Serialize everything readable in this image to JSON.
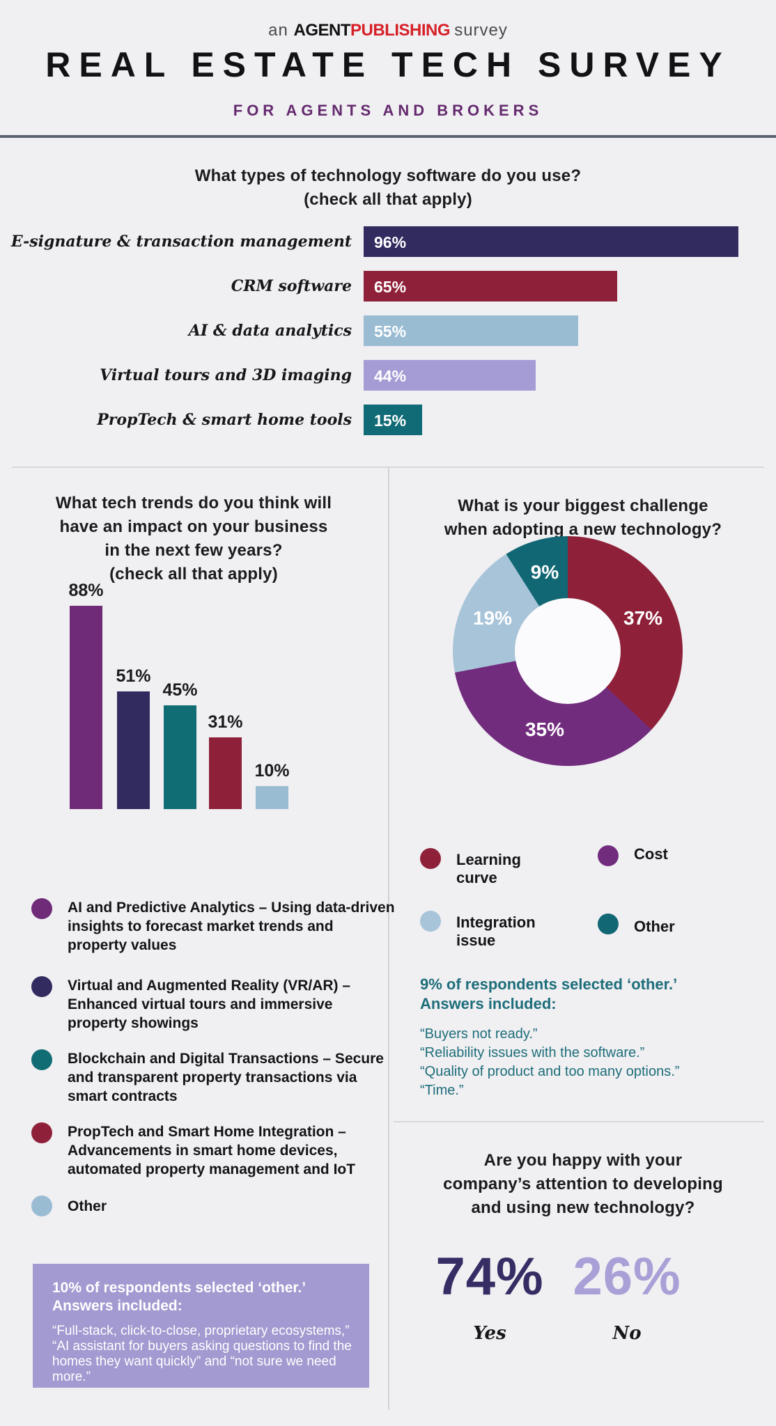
{
  "header": {
    "survey_prefix": "an",
    "brand_agent": "AGENT",
    "brand_publishing": "PUBLISHING",
    "survey_suffix": "survey",
    "title": "REAL ESTATE TECH SURVEY",
    "subtitle": "FOR AGENTS AND BROKERS"
  },
  "colors": {
    "background": "#f0eff2",
    "header_rule": "#5b6273",
    "divider": "#d8d7db",
    "accent_purple": "#642a6e",
    "brand_red": "#d62128",
    "note_teal_text": "#1d6e7a",
    "note_lavender_bg": "#a29ad0"
  },
  "chart_data": [
    {
      "id": "software",
      "type": "bar",
      "orientation": "horizontal",
      "title": "What types of technology software do you use?",
      "subtitle": "(check all that apply)",
      "categories": [
        "E-signature & transaction management",
        "CRM software",
        "AI & data analytics",
        "Virtual tours and 3D imaging",
        "PropTech & smart home tools"
      ],
      "values": [
        96,
        65,
        55,
        44,
        15
      ],
      "value_suffix": "%",
      "colors": [
        "#322b60",
        "#8e2139",
        "#99bcd3",
        "#a59cd5",
        "#106b76"
      ],
      "xmax": 96,
      "grid": false
    },
    {
      "id": "trends",
      "type": "bar",
      "orientation": "vertical",
      "title_lines": [
        "What tech trends do you think will",
        "have an impact on your business",
        "in the next few years?"
      ],
      "subtitle": "(check all that apply)",
      "values": [
        88,
        51,
        45,
        31,
        10
      ],
      "value_suffix": "%",
      "colors": [
        "#6f2b77",
        "#322b60",
        "#116d74",
        "#8e2139",
        "#99bcd3"
      ],
      "ymax": 88,
      "grid": false,
      "legend": [
        {
          "color": "#6f2b77",
          "text": "AI and Predictive Analytics – Using data-driven insights to forecast market trends and property values"
        },
        {
          "color": "#322b60",
          "text": "Virtual and Augmented Reality (VR/AR) – Enhanced virtual tours and immersive property showings"
        },
        {
          "color": "#116d74",
          "text": "Blockchain and Digital Transactions – Secure and transparent property transactions via smart contracts"
        },
        {
          "color": "#8e2139",
          "text": "PropTech and Smart Home Integration – Advancements in smart home devices, automated property management and IoT"
        },
        {
          "color": "#99bcd3",
          "text": "Other"
        }
      ],
      "note": {
        "heading": "10% of respondents selected ‘other.’ Answers included:",
        "body": "“Full-stack, click-to-close, proprietary ecosystems,” “AI assistant for buyers asking questions to find the homes they want quickly” and “not sure we need more.”"
      }
    },
    {
      "id": "challenge",
      "type": "pie",
      "donut": true,
      "title_lines": [
        "What is your biggest challenge",
        "when adopting a new technology?"
      ],
      "slices": [
        {
          "label": "Learning curve",
          "value": 37,
          "color": "#8e2139"
        },
        {
          "label": "Cost",
          "value": 35,
          "color": "#722c7e"
        },
        {
          "label": "Integration issue",
          "value": 19,
          "color": "#a7c4d9"
        },
        {
          "label": "Other",
          "value": 9,
          "color": "#116874"
        }
      ],
      "value_suffix": "%",
      "legend_position": "below",
      "note": {
        "heading": "9% of respondents selected ‘other.’ Answers included:",
        "quotes": [
          "“Buyers not ready.”",
          "“Reliability issues with the software.”",
          "“Quality of product and too many options.”",
          "“Time.”"
        ]
      }
    },
    {
      "id": "happiness",
      "type": "stat",
      "title_lines": [
        "Are you happy with your",
        "company’s attention to developing",
        "and using new technology?"
      ],
      "stats": [
        {
          "label": "Yes",
          "value": "74%",
          "color": "#352d64"
        },
        {
          "label": "No",
          "value": "26%",
          "color": "#a8a0d6"
        }
      ]
    }
  ]
}
